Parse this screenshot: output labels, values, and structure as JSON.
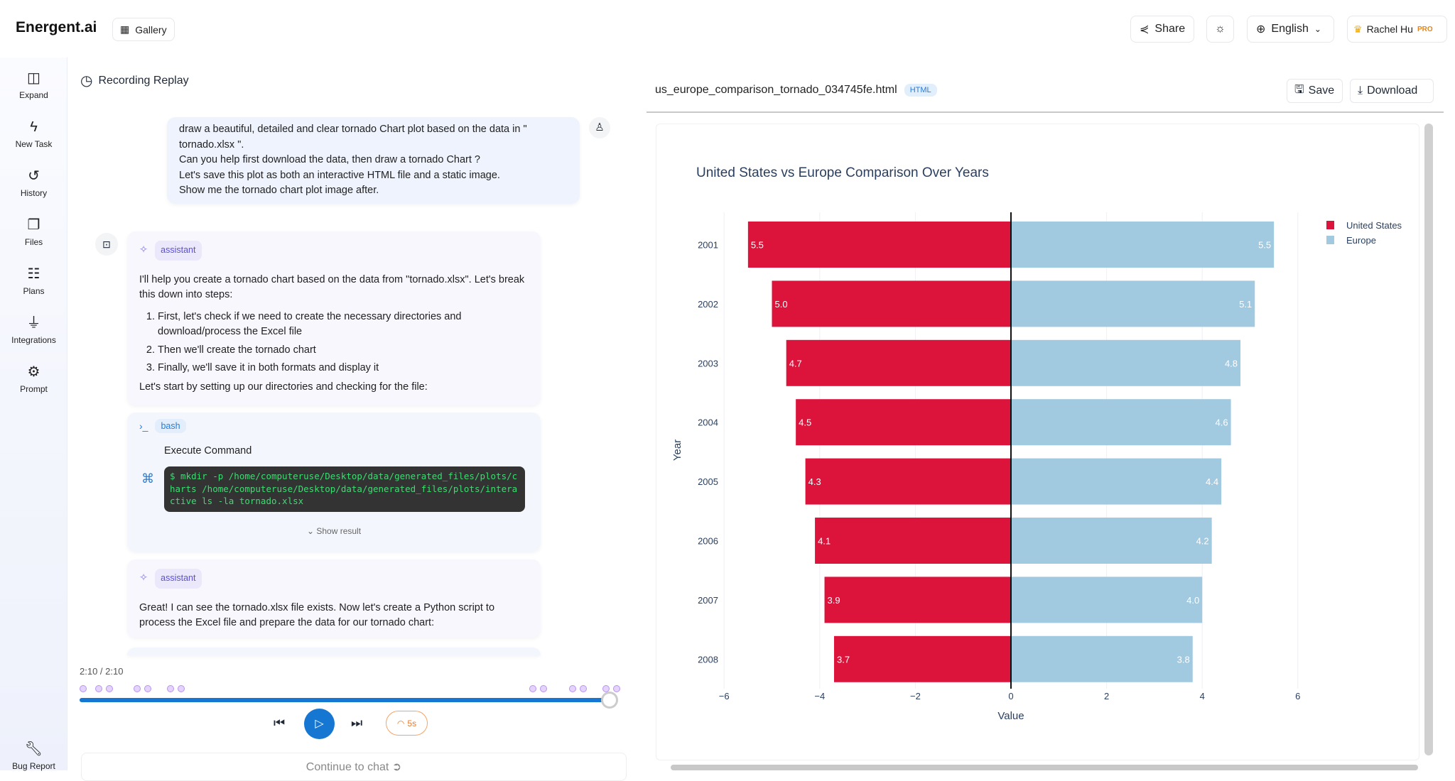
{
  "header": {
    "logo": "Energent.ai",
    "gallery": "Gallery",
    "share": "Share",
    "language": "English",
    "user": "Rachel Hu",
    "badge": "PRO"
  },
  "sidebar": {
    "items": [
      {
        "label": "Expand",
        "icon": "expand-icon"
      },
      {
        "label": "New Task",
        "icon": "bolt-icon"
      },
      {
        "label": "History",
        "icon": "history-icon"
      },
      {
        "label": "Files",
        "icon": "files-icon"
      },
      {
        "label": "Plans",
        "icon": "clipboard-icon"
      },
      {
        "label": "Integrations",
        "icon": "plug-icon"
      },
      {
        "label": "Prompt",
        "icon": "gear-icon"
      }
    ],
    "bug_report": "Bug Report"
  },
  "replay": {
    "title": "Recording Replay",
    "user_message": [
      "draw a beautiful, detailed and clear tornado Chart plot based on the data in \"",
      "tornado.xlsx \".",
      "Can you help first download the data, then draw a tornado Chart ?",
      "Let's save this plot as both an interactive HTML file and a static image.",
      "Show me the tornado chart plot image after."
    ],
    "assistant_tag": "assistant",
    "assistant_msg1": {
      "intro": "I'll help you create a tornado chart based on the data from \"tornado.xlsx\". Let's break this down into steps:",
      "steps": [
        "First, let's check if we need to create the necessary directories and download/process the Excel file",
        "Then we'll create the tornado chart",
        "Finally, we'll save it in both formats and display it"
      ],
      "outro": "Let's start by setting up our directories and checking for the file:"
    },
    "bash_tag": "bash",
    "execute_label": "Execute Command",
    "command": "$ mkdir -p /home/computeruse/Desktop/data/generated_files/plots/charts /home/computeruse/Desktop/data/generated_files/plots/interactive ls -la tornado.xlsx",
    "show_result": "Show result",
    "assistant_msg2": "Great! I can see the tornado.xlsx file exists. Now let's create a Python script to process the Excel file and prepare the data for our tornado chart:",
    "time": "2:10 / 2:10",
    "progress": 1.0,
    "speed": "5s",
    "continue": "Continue to chat"
  },
  "preview": {
    "filename": "us_europe_comparison_tornado_034745fe.html",
    "type_badge": "HTML",
    "save": "Save",
    "download": "Download"
  },
  "chart_data": {
    "type": "bar",
    "orientation": "horizontal",
    "title": "United States vs Europe Comparison Over Years",
    "xlabel": "Value",
    "ylabel": "Year",
    "categories": [
      "2001",
      "2002",
      "2003",
      "2004",
      "2005",
      "2006",
      "2007",
      "2008"
    ],
    "series": [
      {
        "name": "United States",
        "values": [
          -5.5,
          -5.0,
          -4.7,
          -4.5,
          -4.3,
          -4.1,
          -3.9,
          -3.7
        ],
        "labels": [
          "5.5",
          "5.0",
          "4.7",
          "4.5",
          "4.3",
          "4.1",
          "3.9",
          "3.7"
        ],
        "color": "#DC143C"
      },
      {
        "name": "Europe",
        "values": [
          5.5,
          5.1,
          4.8,
          4.6,
          4.4,
          4.2,
          4.0,
          3.8
        ],
        "labels": [
          "5.5",
          "5.1",
          "4.8",
          "4.6",
          "4.4",
          "4.2",
          "4.0",
          "3.8"
        ],
        "color": "#A1C9E0"
      }
    ],
    "xlim": [
      -6,
      6
    ],
    "xticks": [
      "−6",
      "−4",
      "−2",
      "0",
      "2",
      "4",
      "6"
    ],
    "grid": true,
    "legend": "top-right"
  }
}
